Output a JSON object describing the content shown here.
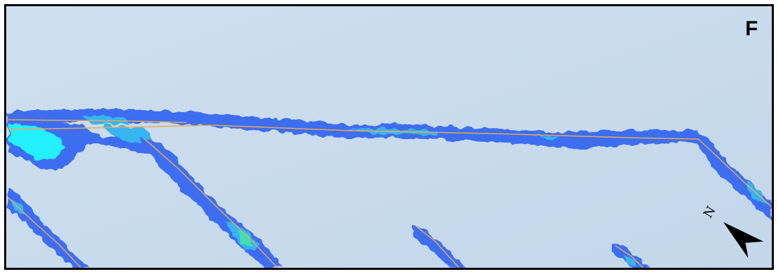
{
  "map": {
    "panel_label": "F",
    "north_label": "N",
    "colors": {
      "background": "#c9dbec",
      "low_density": "#3d6ef2",
      "mid_density": "#39b4f0",
      "high_density": "#21f0ff",
      "peak_density": "#3fe0b0",
      "route_line": "#e8a85a",
      "frame": "#000000"
    },
    "icons": [
      "north-arrow-icon"
    ]
  }
}
